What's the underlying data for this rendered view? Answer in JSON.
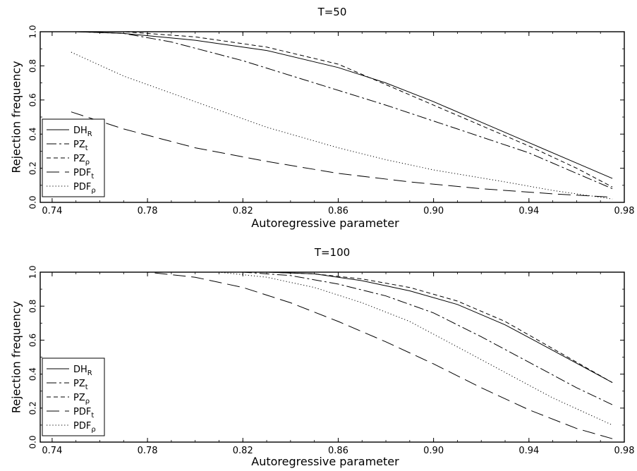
{
  "chart_data": [
    {
      "type": "line",
      "title": "T=50",
      "xlabel": "Autoregressive parameter",
      "ylabel": "Rejection frequency",
      "xlim": [
        0.735,
        0.98
      ],
      "ylim": [
        0,
        1
      ],
      "xticks": [
        "0.74",
        "0.78",
        "0.82",
        "0.86",
        "0.90",
        "0.94",
        "0.98"
      ],
      "yticks": [
        "0.0",
        "0.2",
        "0.4",
        "0.6",
        "0.8",
        "1.0"
      ],
      "legend": {
        "placement": "bottom-left",
        "entries": [
          {
            "base": "DH",
            "sub": "R",
            "style": "solid"
          },
          {
            "base": "PZ",
            "sub": "t",
            "style": "dashdot"
          },
          {
            "base": "PZ",
            "sub": "ρ",
            "style": "dashed"
          },
          {
            "base": "PDF",
            "sub": "t",
            "style": "longdash"
          },
          {
            "base": "PDF",
            "sub": "ρ",
            "style": "dotted"
          }
        ]
      },
      "series": [
        {
          "style": "solid",
          "x": [
            0.75,
            0.77,
            0.8,
            0.83,
            0.86,
            0.88,
            0.9,
            0.92,
            0.94,
            0.96,
            0.975
          ],
          "y": [
            1.0,
            0.99,
            0.95,
            0.89,
            0.79,
            0.7,
            0.59,
            0.47,
            0.35,
            0.23,
            0.14
          ]
        },
        {
          "style": "dashdot",
          "x": [
            0.75,
            0.77,
            0.79,
            0.82,
            0.85,
            0.88,
            0.91,
            0.94,
            0.96,
            0.975
          ],
          "y": [
            1.0,
            0.99,
            0.94,
            0.83,
            0.7,
            0.57,
            0.43,
            0.29,
            0.17,
            0.08
          ]
        },
        {
          "style": "dashed",
          "x": [
            0.75,
            0.77,
            0.8,
            0.83,
            0.86,
            0.88,
            0.9,
            0.92,
            0.94,
            0.96,
            0.975
          ],
          "y": [
            1.0,
            1.0,
            0.97,
            0.91,
            0.81,
            0.69,
            0.57,
            0.45,
            0.33,
            0.2,
            0.09
          ]
        },
        {
          "style": "longdash",
          "x": [
            0.748,
            0.77,
            0.8,
            0.83,
            0.86,
            0.89,
            0.92,
            0.95,
            0.975
          ],
          "y": [
            0.53,
            0.43,
            0.32,
            0.24,
            0.17,
            0.12,
            0.08,
            0.05,
            0.03
          ]
        },
        {
          "style": "dotted",
          "x": [
            0.748,
            0.77,
            0.8,
            0.83,
            0.86,
            0.88,
            0.9,
            0.93,
            0.95,
            0.975
          ],
          "y": [
            0.88,
            0.74,
            0.59,
            0.44,
            0.32,
            0.25,
            0.19,
            0.12,
            0.07,
            0.02
          ]
        }
      ]
    },
    {
      "type": "line",
      "title": "T=100",
      "xlabel": "Autoregressive parameter",
      "ylabel": "Rejection frequency",
      "xlim": [
        0.735,
        0.98
      ],
      "ylim": [
        0,
        1
      ],
      "xticks": [
        "0.74",
        "0.78",
        "0.82",
        "0.86",
        "0.90",
        "0.94",
        "0.98"
      ],
      "yticks": [
        "0.0",
        "0.2",
        "0.4",
        "0.6",
        "0.8",
        "1.0"
      ],
      "legend": {
        "placement": "bottom-left",
        "entries": [
          {
            "base": "DH",
            "sub": "R",
            "style": "solid"
          },
          {
            "base": "PZ",
            "sub": "t",
            "style": "dashdot"
          },
          {
            "base": "PZ",
            "sub": "ρ",
            "style": "dashed"
          },
          {
            "base": "PDF",
            "sub": "t",
            "style": "longdash"
          },
          {
            "base": "PDF",
            "sub": "ρ",
            "style": "dotted"
          }
        ]
      },
      "series": [
        {
          "style": "solid",
          "x": [
            0.8,
            0.83,
            0.85,
            0.87,
            0.89,
            0.91,
            0.93,
            0.95,
            0.975
          ],
          "y": [
            1.0,
            1.0,
            0.99,
            0.95,
            0.89,
            0.81,
            0.69,
            0.54,
            0.35
          ]
        },
        {
          "style": "dashdot",
          "x": [
            0.79,
            0.82,
            0.84,
            0.86,
            0.88,
            0.9,
            0.92,
            0.94,
            0.96,
            0.975
          ],
          "y": [
            1.0,
            1.0,
            0.98,
            0.93,
            0.86,
            0.76,
            0.62,
            0.47,
            0.32,
            0.22
          ]
        },
        {
          "style": "dashed",
          "x": [
            0.8,
            0.83,
            0.85,
            0.87,
            0.89,
            0.91,
            0.93,
            0.95,
            0.975
          ],
          "y": [
            1.0,
            1.0,
            0.99,
            0.96,
            0.91,
            0.83,
            0.71,
            0.55,
            0.35
          ]
        },
        {
          "style": "longdash",
          "x": [
            0.76,
            0.78,
            0.8,
            0.82,
            0.84,
            0.86,
            0.88,
            0.9,
            0.92,
            0.94,
            0.96,
            0.975
          ],
          "y": [
            1.0,
            1.0,
            0.97,
            0.91,
            0.82,
            0.71,
            0.59,
            0.46,
            0.32,
            0.19,
            0.08,
            0.02
          ]
        },
        {
          "style": "dotted",
          "x": [
            0.78,
            0.81,
            0.83,
            0.85,
            0.87,
            0.89,
            0.91,
            0.93,
            0.95,
            0.975
          ],
          "y": [
            1.0,
            1.0,
            0.97,
            0.91,
            0.82,
            0.71,
            0.56,
            0.41,
            0.26,
            0.1
          ]
        }
      ]
    }
  ]
}
